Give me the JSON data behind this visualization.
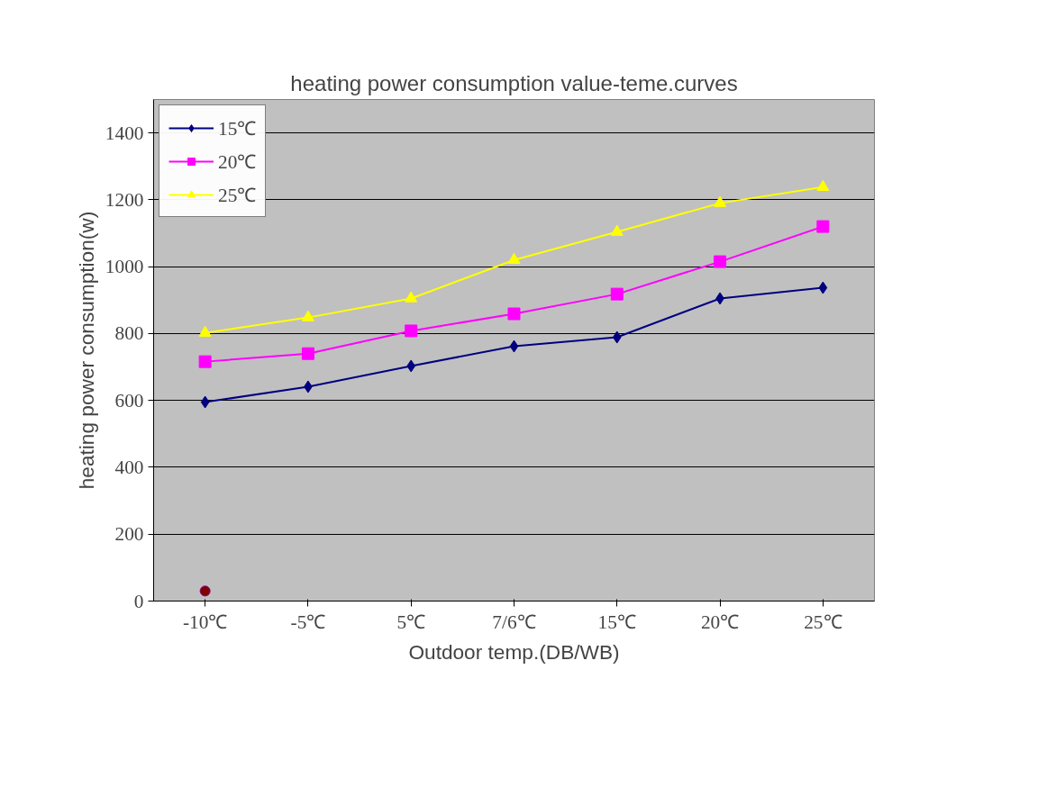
{
  "chart_data": {
    "type": "line",
    "title": "heating power consumption value-teme.curves",
    "xlabel": "Outdoor temp.(DB/WB)",
    "ylabel": "heating power consumption(w)",
    "categories": [
      "-10℃",
      "-5℃",
      "5℃",
      "7/6℃",
      "15℃",
      "20℃",
      "25℃"
    ],
    "series": [
      {
        "name": "15℃",
        "color": "#000080",
        "marker": "diamond",
        "values": [
          595,
          641,
          703,
          762,
          789,
          905,
          937
        ]
      },
      {
        "name": "20℃",
        "color": "#ff00ff",
        "marker": "square",
        "values": [
          716,
          740,
          808,
          859,
          918,
          1015,
          1120
        ]
      },
      {
        "name": "25℃",
        "color": "#ffff00",
        "marker": "triangle",
        "values": [
          802,
          848,
          905,
          1020,
          1104,
          1190,
          1238
        ]
      },
      {
        "type": "scatter",
        "color": "#800000",
        "marker": "circle",
        "values": [
          30,
          null,
          null,
          null,
          null,
          null,
          null
        ]
      }
    ],
    "ylim": [
      0,
      1500
    ],
    "yticks": [
      0,
      200,
      400,
      600,
      800,
      1000,
      1200,
      1400
    ],
    "grid": "y",
    "legend": "top left"
  }
}
